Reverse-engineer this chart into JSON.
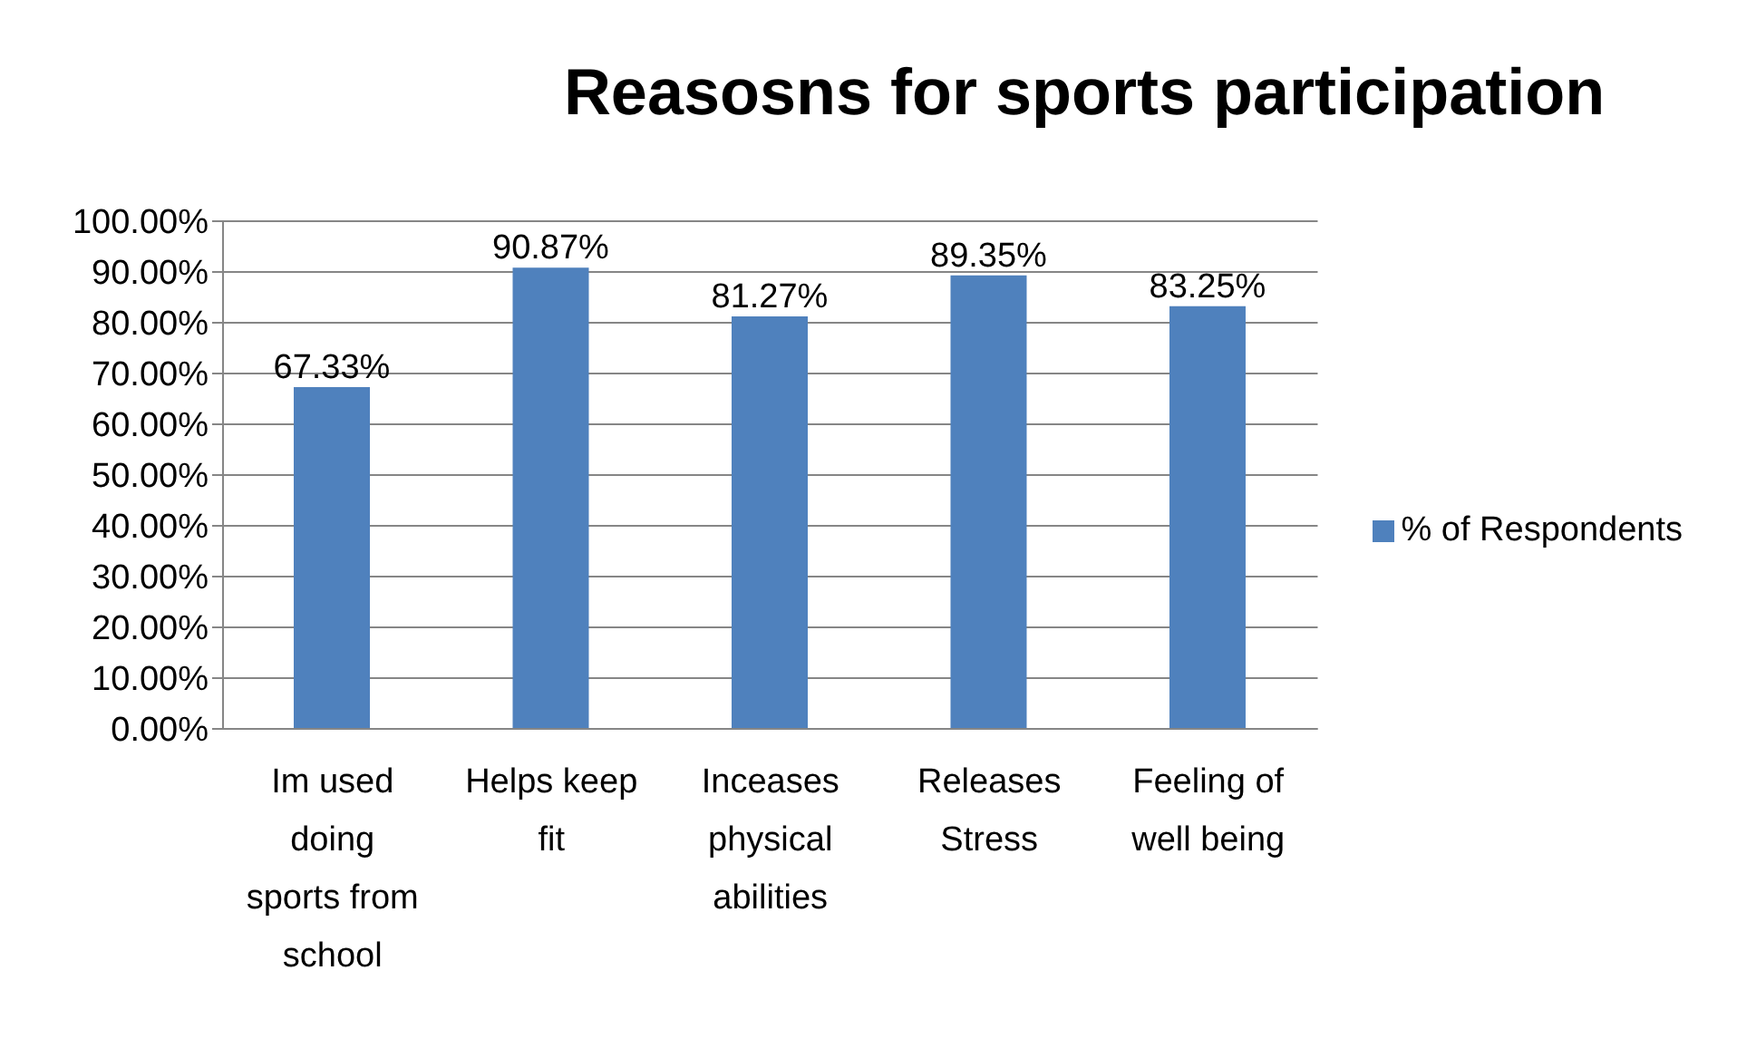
{
  "chart_data": {
    "type": "bar",
    "title": "Reasosns for sports participation",
    "categories": [
      "Im used doing sports from school",
      "Helps keep fit",
      "Inceases physical abilities",
      "Releases Stress",
      "Feeling of well being"
    ],
    "series": [
      {
        "name": "% of Respondents",
        "color": "#4f81bd",
        "values": [
          67.33,
          90.87,
          81.27,
          89.35,
          83.25
        ],
        "value_labels": [
          "67.33%",
          "90.87%",
          "81.27%",
          "89.35%",
          "83.25%"
        ]
      }
    ],
    "ylim": [
      0,
      100
    ],
    "yticks": [
      {
        "value": 0,
        "label": "0.00%"
      },
      {
        "value": 10,
        "label": "10.00%"
      },
      {
        "value": 20,
        "label": "20.00%"
      },
      {
        "value": 30,
        "label": "30.00%"
      },
      {
        "value": 40,
        "label": "40.00%"
      },
      {
        "value": 50,
        "label": "50.00%"
      },
      {
        "value": 60,
        "label": "60.00%"
      },
      {
        "value": 70,
        "label": "70.00%"
      },
      {
        "value": 80,
        "label": "80.00%"
      },
      {
        "value": 90,
        "label": "90.00%"
      },
      {
        "value": 100,
        "label": "100.00%"
      }
    ],
    "grid": "y",
    "legend": "right"
  }
}
